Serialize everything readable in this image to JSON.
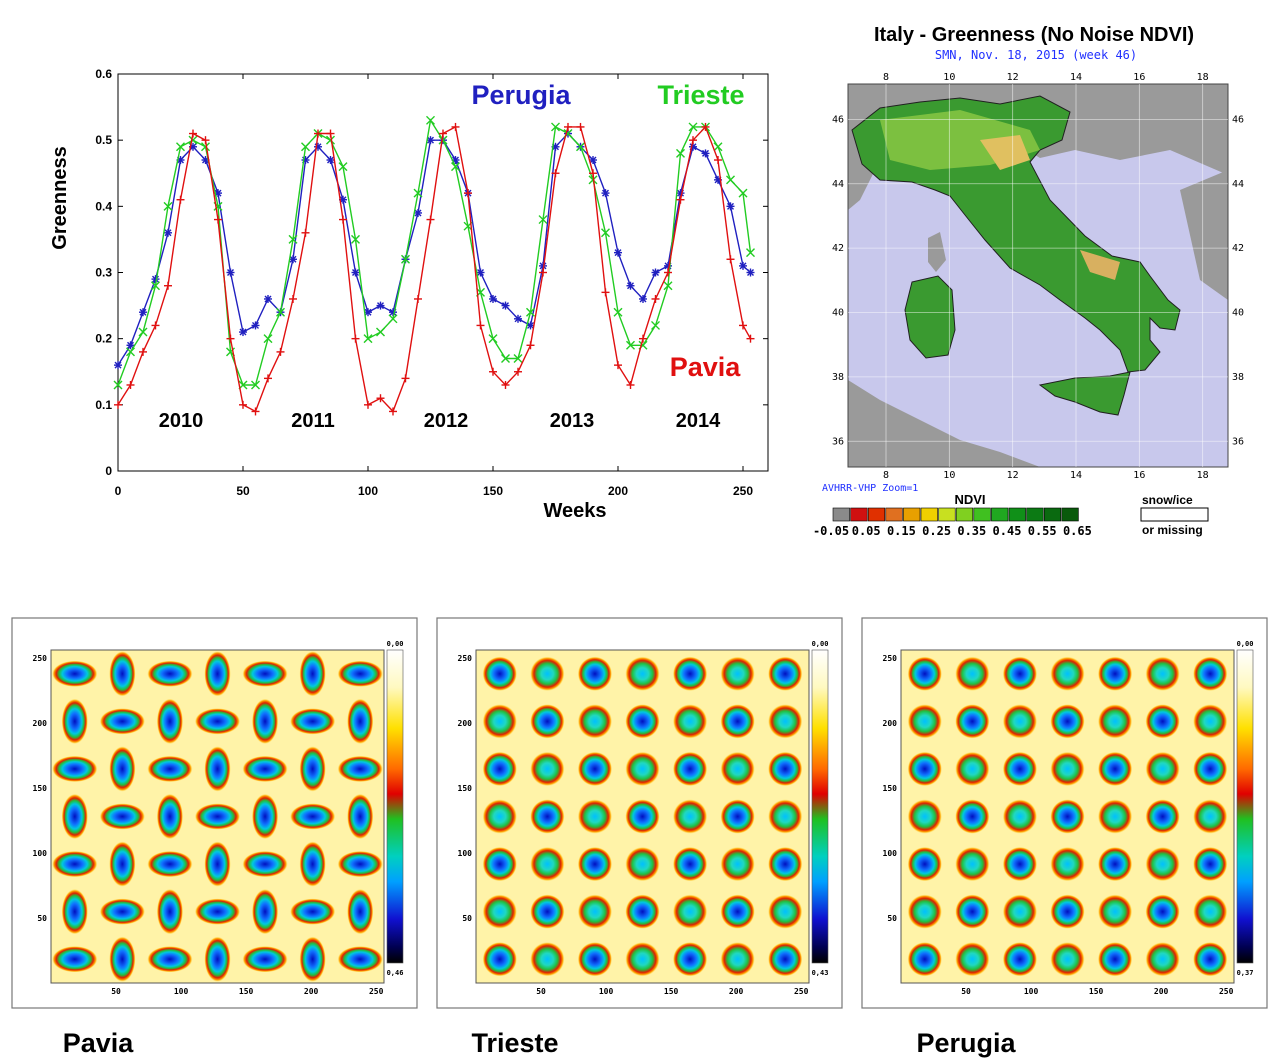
{
  "line_chart": {
    "ylabel": "Greenness",
    "xlabel": "Weeks",
    "yticks": [
      "0",
      "0.1",
      "0.2",
      "0.3",
      "0.4",
      "0.5",
      "0.6"
    ],
    "xticks": [
      "0",
      "50",
      "100",
      "150",
      "200",
      "250"
    ],
    "year_labels": [
      "2010",
      "2011",
      "2012",
      "2013",
      "2014"
    ],
    "series_labels": {
      "perugia": "Perugia",
      "trieste": "Trieste",
      "pavia": "Pavia"
    }
  },
  "map": {
    "title": "Italy - Greenness (No Noise NDVI)",
    "subtitle": "SMN, Nov. 18, 2015 (week 46)",
    "lon_ticks": [
      "8",
      "10",
      "12",
      "14",
      "16",
      "18"
    ],
    "lat_ticks": [
      "46",
      "44",
      "42",
      "40",
      "38",
      "36"
    ],
    "footer": "AVHRR-VHP Zoom=1",
    "legend_title": "NDVI",
    "legend_values": [
      "-0.05",
      "0.05",
      "0.15",
      "0.25",
      "0.35",
      "0.45",
      "0.55",
      "0.65"
    ],
    "snow_label_1": "snow/ice",
    "snow_label_2": "or missing"
  },
  "heatmaps": [
    {
      "label": "Pavia",
      "scale_top": "0,00",
      "scale_bottom": "0,46",
      "ticks": [
        "250",
        "200",
        "150",
        "100",
        "50"
      ],
      "xticks": [
        "50",
        "100",
        "150",
        "200",
        "250"
      ]
    },
    {
      "label": "Trieste",
      "scale_top": "0,00",
      "scale_bottom": "0,43",
      "ticks": [
        "250",
        "200",
        "150",
        "100",
        "50"
      ],
      "xticks": [
        "50",
        "100",
        "150",
        "200",
        "250"
      ]
    },
    {
      "label": "Perugia",
      "scale_top": "0,00",
      "scale_bottom": "0,37",
      "ticks": [
        "250",
        "200",
        "150",
        "100",
        "50"
      ],
      "xticks": [
        "50",
        "100",
        "150",
        "200",
        "250"
      ]
    }
  ],
  "colors": {
    "perugia": "#2020c0",
    "trieste": "#22cc22",
    "pavia": "#e01010"
  },
  "chart_data": [
    {
      "type": "line",
      "xlabel": "Weeks",
      "ylabel": "Greenness",
      "xlim": [
        0,
        260
      ],
      "ylim": [
        0,
        0.6
      ],
      "grid": false,
      "series": [
        {
          "name": "Perugia",
          "marker": "*",
          "x": [
            0,
            5,
            10,
            15,
            20,
            25,
            30,
            35,
            40,
            45,
            50,
            55,
            60,
            65,
            70,
            75,
            80,
            85,
            90,
            95,
            100,
            105,
            110,
            115,
            120,
            125,
            130,
            135,
            140,
            145,
            150,
            155,
            160,
            165,
            170,
            175,
            180,
            185,
            190,
            195,
            200,
            205,
            210,
            215,
            220,
            225,
            230,
            235,
            240,
            245,
            250,
            253
          ],
          "y": [
            0.16,
            0.19,
            0.24,
            0.29,
            0.36,
            0.47,
            0.49,
            0.47,
            0.42,
            0.3,
            0.21,
            0.22,
            0.26,
            0.24,
            0.32,
            0.47,
            0.49,
            0.47,
            0.41,
            0.3,
            0.24,
            0.25,
            0.24,
            0.32,
            0.39,
            0.5,
            0.5,
            0.47,
            0.42,
            0.3,
            0.26,
            0.25,
            0.23,
            0.22,
            0.31,
            0.49,
            0.51,
            0.49,
            0.47,
            0.42,
            0.33,
            0.28,
            0.26,
            0.3,
            0.31,
            0.42,
            0.49,
            0.48,
            0.44,
            0.4,
            0.31,
            0.3
          ]
        },
        {
          "name": "Trieste",
          "marker": "x",
          "x": [
            0,
            5,
            10,
            15,
            20,
            25,
            30,
            35,
            40,
            45,
            50,
            55,
            60,
            65,
            70,
            75,
            80,
            85,
            90,
            95,
            100,
            105,
            110,
            115,
            120,
            125,
            130,
            135,
            140,
            145,
            150,
            155,
            160,
            165,
            170,
            175,
            180,
            185,
            190,
            195,
            200,
            205,
            210,
            215,
            220,
            225,
            230,
            235,
            240,
            245,
            250,
            253
          ],
          "y": [
            0.13,
            0.18,
            0.21,
            0.28,
            0.4,
            0.49,
            0.5,
            0.49,
            0.4,
            0.18,
            0.13,
            0.13,
            0.2,
            0.24,
            0.35,
            0.49,
            0.51,
            0.5,
            0.46,
            0.35,
            0.2,
            0.21,
            0.23,
            0.32,
            0.42,
            0.53,
            0.5,
            0.46,
            0.37,
            0.27,
            0.2,
            0.17,
            0.17,
            0.24,
            0.38,
            0.52,
            0.51,
            0.49,
            0.44,
            0.36,
            0.24,
            0.19,
            0.19,
            0.22,
            0.28,
            0.48,
            0.52,
            0.52,
            0.49,
            0.44,
            0.42,
            0.33
          ]
        },
        {
          "name": "Pavia",
          "marker": "+",
          "x": [
            0,
            5,
            10,
            15,
            20,
            25,
            30,
            35,
            40,
            45,
            50,
            55,
            60,
            65,
            70,
            75,
            80,
            85,
            90,
            95,
            100,
            105,
            110,
            115,
            120,
            125,
            130,
            135,
            140,
            145,
            150,
            155,
            160,
            165,
            170,
            175,
            180,
            185,
            190,
            195,
            200,
            205,
            210,
            215,
            220,
            225,
            230,
            235,
            240,
            245,
            250,
            253
          ],
          "y": [
            0.1,
            0.13,
            0.18,
            0.22,
            0.28,
            0.41,
            0.51,
            0.5,
            0.38,
            0.2,
            0.1,
            0.09,
            0.14,
            0.18,
            0.26,
            0.36,
            0.51,
            0.51,
            0.38,
            0.2,
            0.1,
            0.11,
            0.09,
            0.14,
            0.26,
            0.38,
            0.51,
            0.52,
            0.42,
            0.22,
            0.15,
            0.13,
            0.15,
            0.19,
            0.3,
            0.45,
            0.52,
            0.52,
            0.45,
            0.27,
            0.16,
            0.13,
            0.2,
            0.26,
            0.3,
            0.41,
            0.5,
            0.52,
            0.47,
            0.32,
            0.22,
            0.2
          ]
        }
      ]
    }
  ]
}
